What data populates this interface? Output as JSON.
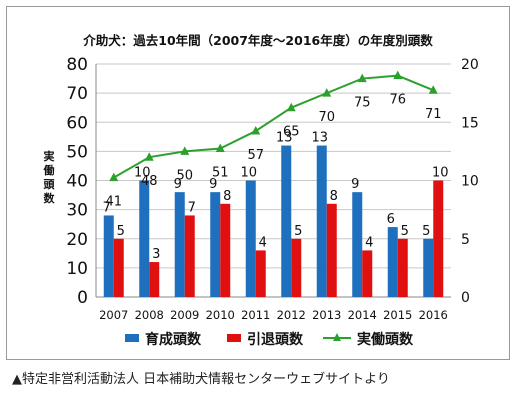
{
  "chart_data": {
    "type": "bar",
    "title": "介助犬：過去10年間（2007年度～2016年度）の年度別頭数",
    "categories": [
      "2007",
      "2008",
      "2009",
      "2010",
      "2011",
      "2012",
      "2013",
      "2014",
      "2015",
      "2016"
    ],
    "ylabel": "実働頭数",
    "ylim_left": [
      0,
      80
    ],
    "yticks_left": [
      "0",
      "10",
      "20",
      "30",
      "40",
      "50",
      "60",
      "70",
      "80"
    ],
    "ylim_right": [
      0,
      20
    ],
    "yticks_right": [
      "0",
      "5",
      "10",
      "15",
      "20"
    ],
    "grid": "horizontal",
    "legend_position": "bottom",
    "series": [
      {
        "name": "育成頭数",
        "type": "bar",
        "axis": "right",
        "color": "#1f6fbf",
        "values": [
          7,
          10,
          9,
          9,
          10,
          13,
          13,
          9,
          6,
          5
        ]
      },
      {
        "name": "引退頭数",
        "type": "bar",
        "axis": "right",
        "color": "#e01010",
        "values": [
          5,
          3,
          7,
          8,
          4,
          5,
          8,
          4,
          5,
          10
        ]
      },
      {
        "name": "実働頭数",
        "type": "line",
        "axis": "left",
        "color": "#2ca02c",
        "marker": "triangle",
        "values": [
          41,
          48,
          50,
          51,
          57,
          65,
          70,
          75,
          76,
          71
        ]
      }
    ]
  },
  "source_text": "▲特定非営利活動法人 日本補助犬情報センターウェブサイトより"
}
